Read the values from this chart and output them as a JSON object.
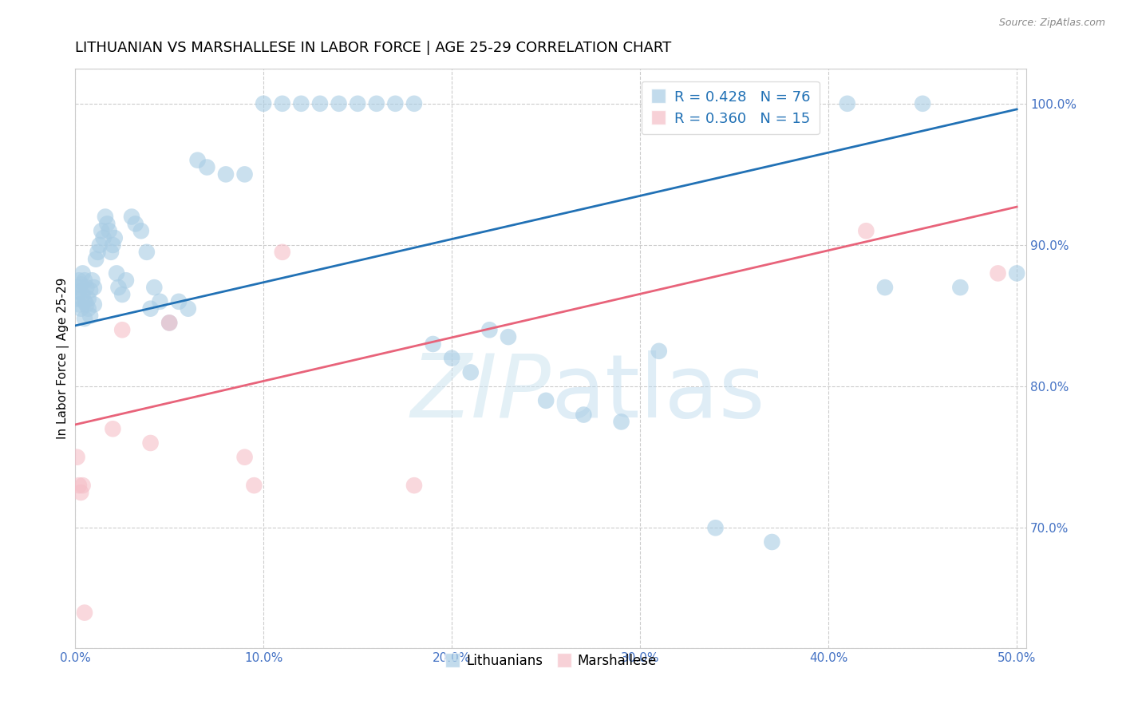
{
  "title": "LITHUANIAN VS MARSHALLESE IN LABOR FORCE | AGE 25-29 CORRELATION CHART",
  "source": "Source: ZipAtlas.com",
  "ylabel": "In Labor Force | Age 25-29",
  "xlim": [
    0.0,
    0.505
  ],
  "ylim": [
    0.615,
    1.025
  ],
  "xticks": [
    0.0,
    0.1,
    0.2,
    0.3,
    0.4,
    0.5
  ],
  "yticks": [
    0.7,
    0.8,
    0.9,
    1.0
  ],
  "ytick_labels": [
    "70.0%",
    "80.0%",
    "90.0%",
    "100.0%"
  ],
  "xtick_labels": [
    "0.0%",
    "10.0%",
    "20.0%",
    "30.0%",
    "40.0%",
    "50.0%"
  ],
  "blue_color": "#a8cce4",
  "pink_color": "#f5bec7",
  "blue_line_color": "#2171b5",
  "pink_line_color": "#e8637a",
  "blue_r": "R = 0.428",
  "blue_n": "N = 76",
  "pink_r": "R = 0.360",
  "pink_n": "N = 15",
  "legend_label_blue": "Lithuanians",
  "legend_label_pink": "Marshallese",
  "blue_x": [
    0.001,
    0.001,
    0.002,
    0.002,
    0.002,
    0.003,
    0.003,
    0.004,
    0.004,
    0.005,
    0.005,
    0.005,
    0.006,
    0.006,
    0.007,
    0.007,
    0.008,
    0.008,
    0.009,
    0.01,
    0.01,
    0.011,
    0.012,
    0.013,
    0.014,
    0.015,
    0.016,
    0.017,
    0.018,
    0.019,
    0.02,
    0.021,
    0.022,
    0.023,
    0.025,
    0.027,
    0.03,
    0.032,
    0.035,
    0.038,
    0.04,
    0.042,
    0.045,
    0.05,
    0.055,
    0.06,
    0.065,
    0.07,
    0.08,
    0.09,
    0.1,
    0.11,
    0.12,
    0.13,
    0.14,
    0.15,
    0.16,
    0.17,
    0.18,
    0.19,
    0.2,
    0.21,
    0.22,
    0.23,
    0.25,
    0.27,
    0.29,
    0.31,
    0.34,
    0.37,
    0.39,
    0.41,
    0.43,
    0.45,
    0.47,
    0.5
  ],
  "blue_y": [
    0.87,
    0.862,
    0.875,
    0.858,
    0.867,
    0.872,
    0.855,
    0.865,
    0.88,
    0.86,
    0.848,
    0.875,
    0.858,
    0.87,
    0.855,
    0.862,
    0.85,
    0.868,
    0.875,
    0.858,
    0.87,
    0.89,
    0.895,
    0.9,
    0.91,
    0.905,
    0.92,
    0.915,
    0.91,
    0.895,
    0.9,
    0.905,
    0.88,
    0.87,
    0.865,
    0.875,
    0.92,
    0.915,
    0.91,
    0.895,
    0.855,
    0.87,
    0.86,
    0.845,
    0.86,
    0.855,
    0.96,
    0.955,
    0.95,
    0.95,
    1.0,
    1.0,
    1.0,
    1.0,
    1.0,
    1.0,
    1.0,
    1.0,
    1.0,
    0.83,
    0.82,
    0.81,
    0.84,
    0.835,
    0.79,
    0.78,
    0.775,
    0.825,
    0.7,
    0.69,
    1.0,
    1.0,
    0.87,
    1.0,
    0.87,
    0.88
  ],
  "pink_x": [
    0.001,
    0.002,
    0.003,
    0.004,
    0.005,
    0.02,
    0.025,
    0.04,
    0.05,
    0.09,
    0.095,
    0.11,
    0.18,
    0.42,
    0.49
  ],
  "pink_y": [
    0.75,
    0.73,
    0.725,
    0.73,
    0.64,
    0.77,
    0.84,
    0.76,
    0.845,
    0.75,
    0.73,
    0.895,
    0.73,
    0.91,
    0.88
  ],
  "blue_trend_x": [
    0.0,
    0.5
  ],
  "blue_trend_y": [
    0.843,
    0.996
  ],
  "pink_trend_x": [
    0.0,
    0.5
  ],
  "pink_trend_y": [
    0.773,
    0.927
  ],
  "watermark_zip": "ZIP",
  "watermark_atlas": "atlas",
  "title_fontsize": 13,
  "label_fontsize": 11,
  "tick_fontsize": 11,
  "axis_tick_color": "#4472c4",
  "grid_color": "#cccccc",
  "background_color": "#ffffff"
}
